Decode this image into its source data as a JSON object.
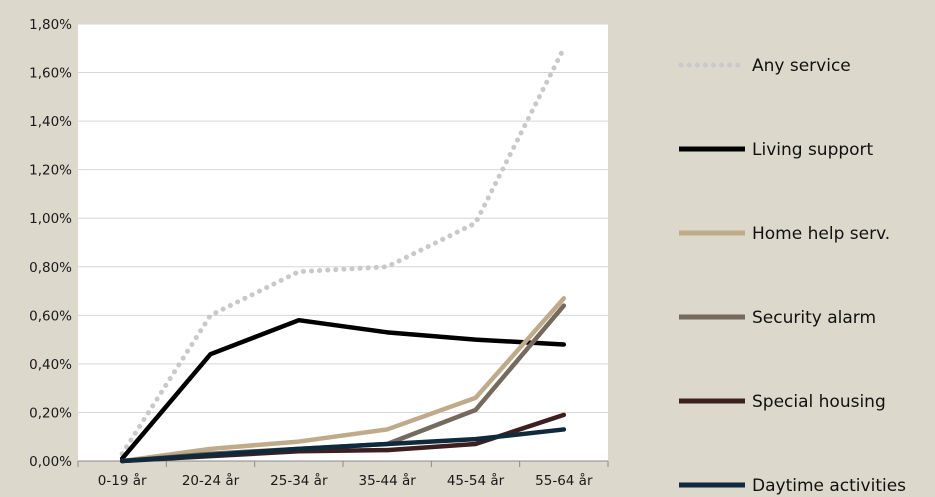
{
  "chart_data": {
    "type": "line",
    "categories": [
      "0-19 år",
      "20-24 år",
      "25-34 år",
      "35-44 år",
      "45-54 år",
      "55-64 år"
    ],
    "ylim": [
      0,
      1.8
    ],
    "yticks": [
      0,
      0.2,
      0.4,
      0.6,
      0.8,
      1.0,
      1.2,
      1.4,
      1.6,
      1.8
    ],
    "ytick_labels": [
      "0,00%",
      "0,20%",
      "0,40%",
      "0,60%",
      "0,80%",
      "1,00%",
      "1,20%",
      "1,40%",
      "1,60%",
      "1,80%"
    ],
    "grid": "horizontal",
    "legend_position": "right",
    "series": [
      {
        "name": "Any service",
        "values": [
          0.03,
          0.6,
          0.78,
          0.8,
          0.98,
          1.7
        ],
        "color": "#c9c9c9",
        "style": "dotted"
      },
      {
        "name": "Living support",
        "values": [
          0.01,
          0.44,
          0.58,
          0.53,
          0.5,
          0.48
        ],
        "color": "#000000",
        "style": "solid"
      },
      {
        "name": "Home help serv.",
        "values": [
          0.0,
          0.05,
          0.08,
          0.13,
          0.26,
          0.67
        ],
        "color": "#bfab8a",
        "style": "solid"
      },
      {
        "name": "Security alarm",
        "values": [
          0.0,
          0.03,
          0.05,
          0.07,
          0.21,
          0.64
        ],
        "color": "#76695d",
        "style": "solid"
      },
      {
        "name": "Special housing",
        "values": [
          0.0,
          0.02,
          0.04,
          0.045,
          0.07,
          0.19
        ],
        "color": "#3d1f1f",
        "style": "solid"
      },
      {
        "name": "Daytime activities",
        "values": [
          0.0,
          0.025,
          0.05,
          0.07,
          0.09,
          0.13
        ],
        "color": "#0f2a3d",
        "style": "solid"
      }
    ]
  }
}
